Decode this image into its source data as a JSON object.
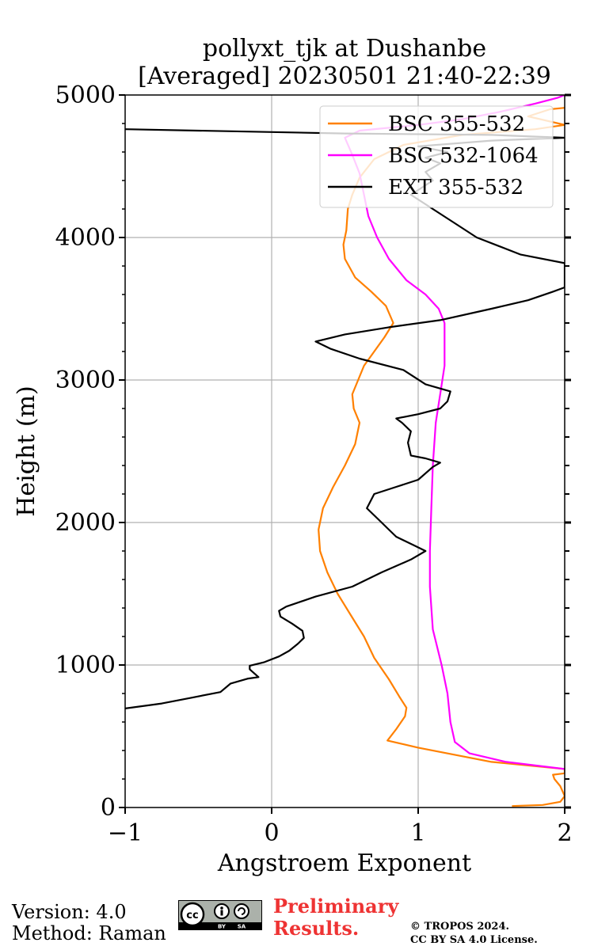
{
  "chart_data": {
    "type": "line",
    "title": [
      "pollyxt_tjk at Dushanbe",
      "[Averaged] 20230501 21:40-22:39"
    ],
    "xlabel": "Angstroem Exponent",
    "ylabel": "Height (m)",
    "xlim": [
      -1,
      2
    ],
    "ylim": [
      0,
      5000
    ],
    "xticks": [
      -1,
      0,
      1,
      2
    ],
    "xtick_labels": [
      "−1",
      "0",
      "1",
      "2"
    ],
    "yticks": [
      0,
      1000,
      2000,
      3000,
      4000,
      5000
    ],
    "ytick_labels": [
      "0",
      "1000",
      "2000",
      "3000",
      "4000",
      "5000"
    ],
    "grid": true,
    "legend_position": "top-right",
    "series": [
      {
        "name": "BSC 355-532",
        "color": "#ff8000",
        "points": [
          [
            1.64,
            10
          ],
          [
            1.85,
            18
          ],
          [
            1.97,
            40
          ],
          [
            2.0,
            80
          ],
          [
            1.97,
            150
          ],
          [
            1.93,
            200
          ],
          [
            1.92,
            230
          ],
          [
            2.0,
            240
          ],
          [
            2.0,
            270
          ],
          [
            1.5,
            320
          ],
          [
            1.0,
            420
          ],
          [
            0.79,
            470
          ],
          [
            0.85,
            550
          ],
          [
            0.91,
            640
          ],
          [
            0.92,
            700
          ],
          [
            0.87,
            780
          ],
          [
            0.8,
            900
          ],
          [
            0.7,
            1050
          ],
          [
            0.63,
            1200
          ],
          [
            0.54,
            1350
          ],
          [
            0.45,
            1500
          ],
          [
            0.38,
            1650
          ],
          [
            0.33,
            1800
          ],
          [
            0.32,
            1950
          ],
          [
            0.35,
            2100
          ],
          [
            0.42,
            2250
          ],
          [
            0.5,
            2400
          ],
          [
            0.57,
            2550
          ],
          [
            0.6,
            2700
          ],
          [
            0.56,
            2800
          ],
          [
            0.55,
            2900
          ],
          [
            0.63,
            3100
          ],
          [
            0.77,
            3300
          ],
          [
            0.83,
            3400
          ],
          [
            0.78,
            3520
          ],
          [
            0.68,
            3620
          ],
          [
            0.57,
            3720
          ],
          [
            0.5,
            3850
          ],
          [
            0.49,
            3950
          ],
          [
            0.51,
            4050
          ],
          [
            0.52,
            4200
          ],
          [
            0.55,
            4300
          ],
          [
            0.6,
            4420
          ],
          [
            0.7,
            4550
          ],
          [
            0.9,
            4650
          ],
          [
            1.3,
            4720
          ],
          [
            1.8,
            4760
          ],
          [
            2.0,
            4790
          ],
          [
            1.75,
            4850
          ],
          [
            1.9,
            4900
          ],
          [
            2.0,
            4910
          ]
        ]
      },
      {
        "name": "BSC 532-1064",
        "color": "#ff00ff",
        "points": [
          [
            2.0,
            270
          ],
          [
            1.6,
            320
          ],
          [
            1.35,
            380
          ],
          [
            1.25,
            460
          ],
          [
            1.22,
            600
          ],
          [
            1.2,
            800
          ],
          [
            1.16,
            1000
          ],
          [
            1.1,
            1250
          ],
          [
            1.08,
            1550
          ],
          [
            1.08,
            1800
          ],
          [
            1.09,
            2100
          ],
          [
            1.1,
            2400
          ],
          [
            1.12,
            2700
          ],
          [
            1.15,
            2900
          ],
          [
            1.18,
            3100
          ],
          [
            1.18,
            3400
          ],
          [
            1.14,
            3500
          ],
          [
            1.05,
            3600
          ],
          [
            0.92,
            3700
          ],
          [
            0.8,
            3850
          ],
          [
            0.72,
            4000
          ],
          [
            0.66,
            4150
          ],
          [
            0.63,
            4300
          ],
          [
            0.6,
            4450
          ],
          [
            0.55,
            4580
          ],
          [
            0.5,
            4700
          ],
          [
            0.6,
            4750
          ],
          [
            1.0,
            4790
          ],
          [
            1.3,
            4830
          ],
          [
            1.55,
            4880
          ],
          [
            1.8,
            4940
          ],
          [
            1.95,
            4980
          ],
          [
            2.0,
            5000
          ]
        ]
      },
      {
        "name": "EXT 355-532",
        "color": "#000000",
        "points": [
          [
            -1.0,
            695
          ],
          [
            -0.75,
            730
          ],
          [
            -0.55,
            770
          ],
          [
            -0.35,
            810
          ],
          [
            -0.28,
            870
          ],
          [
            -0.16,
            905
          ],
          [
            -0.09,
            915
          ],
          [
            -0.15,
            970
          ],
          [
            -0.15,
            995
          ],
          [
            -0.05,
            1020
          ],
          [
            0.05,
            1060
          ],
          [
            0.12,
            1100
          ],
          [
            0.18,
            1150
          ],
          [
            0.22,
            1190
          ],
          [
            0.21,
            1240
          ],
          [
            0.14,
            1290
          ],
          [
            0.06,
            1340
          ],
          [
            0.05,
            1380
          ],
          [
            0.1,
            1410
          ],
          [
            0.3,
            1480
          ],
          [
            0.55,
            1550
          ],
          [
            0.75,
            1650
          ],
          [
            0.95,
            1740
          ],
          [
            1.05,
            1800
          ],
          [
            0.97,
            1840
          ],
          [
            0.85,
            1900
          ],
          [
            0.8,
            1950
          ],
          [
            0.75,
            2000
          ],
          [
            0.65,
            2100
          ],
          [
            0.7,
            2200
          ],
          [
            0.85,
            2250
          ],
          [
            1.0,
            2300
          ],
          [
            1.1,
            2390
          ],
          [
            1.15,
            2420
          ],
          [
            1.05,
            2450
          ],
          [
            0.95,
            2470
          ],
          [
            0.93,
            2560
          ],
          [
            0.95,
            2640
          ],
          [
            0.89,
            2700
          ],
          [
            0.85,
            2730
          ],
          [
            1.0,
            2760
          ],
          [
            1.15,
            2800
          ],
          [
            1.2,
            2850
          ],
          [
            1.22,
            2920
          ],
          [
            1.05,
            2970
          ],
          [
            0.9,
            3070
          ],
          [
            0.6,
            3150
          ],
          [
            0.4,
            3220
          ],
          [
            0.3,
            3270
          ],
          [
            0.5,
            3320
          ],
          [
            0.8,
            3370
          ],
          [
            1.15,
            3420
          ],
          [
            1.5,
            3500
          ],
          [
            1.75,
            3560
          ],
          [
            1.92,
            3620
          ],
          [
            2.0,
            3650
          ],
          [
            2.0,
            3820
          ],
          [
            1.7,
            3880
          ],
          [
            1.55,
            3940
          ],
          [
            1.4,
            4000
          ],
          [
            1.25,
            4100
          ],
          [
            1.1,
            4200
          ],
          [
            0.95,
            4300
          ],
          [
            1.1,
            4400
          ],
          [
            1.05,
            4460
          ],
          [
            1.15,
            4520
          ],
          [
            1.05,
            4560
          ],
          [
            1.2,
            4600
          ],
          [
            1.0,
            4640
          ],
          [
            1.5,
            4680
          ],
          [
            2.0,
            4700
          ],
          [
            1.5,
            4720
          ],
          [
            0.5,
            4730
          ],
          [
            -1.0,
            4760
          ]
        ]
      }
    ]
  },
  "footer": {
    "version": "Version: 4.0",
    "method": "Method: Raman",
    "preliminary_line1": "Preliminary",
    "preliminary_line2": "Results.",
    "copyright_line1": "© TROPOS 2024.",
    "copyright_line2": "CC BY SA 4.0 License."
  },
  "license_badge": {
    "icon": "cc-by-sa-icon",
    "labels": [
      "BY",
      "SA"
    ]
  }
}
